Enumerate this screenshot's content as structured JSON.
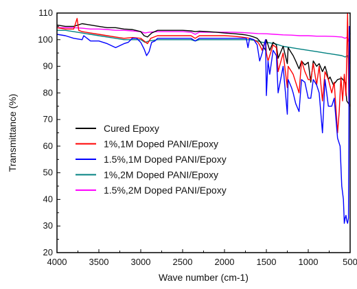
{
  "chart_data": {
    "type": "line",
    "title": "",
    "xlabel": "Wave number (cm-1)",
    "ylabel": "Transmittance (%)",
    "xlim": [
      4000,
      500
    ],
    "ylim": [
      20,
      110
    ],
    "x_ticks": [
      4000,
      3500,
      3000,
      2500,
      2000,
      1500,
      1000,
      500
    ],
    "y_ticks": [
      20,
      30,
      40,
      50,
      60,
      70,
      80,
      90,
      100,
      110
    ],
    "x_tick_labels": [
      "4000",
      "3500",
      "3000",
      "2500",
      "2000",
      "1500",
      "1000",
      "500"
    ],
    "y_tick_labels": [
      "20",
      "30",
      "40",
      "50",
      "60",
      "70",
      "80",
      "90",
      "100",
      "110"
    ],
    "grid": false,
    "legend_position": "lower-left",
    "series": [
      {
        "name": "Cured Epoxy",
        "color": "#000000",
        "x": [
          4000,
          3900,
          3800,
          3700,
          3600,
          3500,
          3400,
          3300,
          3200,
          3100,
          3000,
          2960,
          2920,
          2870,
          2800,
          2700,
          2600,
          2500,
          2400,
          2350,
          2300,
          2200,
          2100,
          2000,
          1900,
          1800,
          1750,
          1700,
          1650,
          1610,
          1580,
          1550,
          1510,
          1500,
          1460,
          1420,
          1380,
          1360,
          1300,
          1250,
          1240,
          1200,
          1180,
          1150,
          1110,
          1080,
          1040,
          1000,
          970,
          940,
          900,
          870,
          830,
          800,
          780,
          760,
          740,
          700,
          650,
          600,
          560,
          540,
          520,
          500
        ],
        "y": [
          105.5,
          105,
          105,
          106,
          105.5,
          105,
          104.5,
          104.5,
          104,
          103.8,
          103,
          101.5,
          101,
          102.5,
          103.5,
          103.5,
          103.5,
          103.5,
          103.3,
          103,
          103.2,
          103,
          102.8,
          102.5,
          102.3,
          102,
          101.8,
          101.5,
          101,
          100.5,
          99.5,
          98,
          96,
          100,
          96,
          99,
          98,
          93,
          97.5,
          91,
          97,
          95,
          94,
          92,
          89,
          92,
          90.5,
          91.5,
          84,
          92,
          90,
          91,
          88,
          90,
          88,
          85,
          86,
          83,
          85,
          85.5,
          84,
          77,
          76,
          75
        ]
      },
      {
        "name": "1%,1M Doped PANI/Epoxy",
        "color": "#ff0000",
        "x": [
          4000,
          3900,
          3800,
          3760,
          3740,
          3700,
          3600,
          3500,
          3400,
          3300,
          3200,
          3100,
          3000,
          2960,
          2920,
          2880,
          2800,
          2700,
          2600,
          2500,
          2400,
          2350,
          2300,
          2200,
          2100,
          2000,
          1900,
          1800,
          1700,
          1650,
          1600,
          1580,
          1550,
          1510,
          1500,
          1480,
          1460,
          1420,
          1380,
          1360,
          1300,
          1250,
          1240,
          1200,
          1180,
          1150,
          1110,
          1080,
          1040,
          1000,
          970,
          940,
          900,
          870,
          830,
          800,
          760,
          720,
          690,
          650,
          630,
          610,
          590,
          570,
          550,
          530,
          515,
          500
        ],
        "y": [
          104.5,
          104,
          104,
          108,
          103.5,
          103,
          102.5,
          102,
          101.5,
          101,
          100.5,
          100.8,
          100.5,
          99.5,
          98.5,
          100.5,
          101.5,
          101.5,
          101.5,
          101.5,
          101.5,
          100.5,
          101.5,
          101.5,
          101.5,
          101.5,
          101.3,
          101,
          100.5,
          100,
          99,
          98,
          96,
          100,
          95,
          92,
          94,
          98,
          97,
          88,
          95,
          82,
          90,
          88,
          87,
          84,
          80,
          92,
          88,
          85,
          85,
          91,
          83,
          90,
          77,
          88,
          85,
          80,
          84,
          65,
          73,
          86,
          77,
          87,
          79,
          110,
          76,
          75
        ]
      },
      {
        "name": "1.5%,1M Doped PANI/Epoxy",
        "color": "#0000ff",
        "x": [
          4000,
          3900,
          3800,
          3700,
          3680,
          3600,
          3500,
          3400,
          3300,
          3200,
          3150,
          3100,
          3050,
          3000,
          2960,
          2930,
          2900,
          2870,
          2830,
          2800,
          2700,
          2600,
          2500,
          2400,
          2350,
          2300,
          2200,
          2100,
          2000,
          1900,
          1800,
          1740,
          1720,
          1700,
          1650,
          1610,
          1600,
          1580,
          1550,
          1510,
          1500,
          1480,
          1460,
          1420,
          1380,
          1360,
          1300,
          1250,
          1240,
          1200,
          1180,
          1150,
          1110,
          1080,
          1040,
          1000,
          970,
          940,
          900,
          870,
          830,
          800,
          760,
          720,
          690,
          650,
          620,
          600,
          580,
          570,
          560,
          550,
          540,
          530,
          520,
          510,
          500
        ],
        "y": [
          102,
          101.5,
          100.5,
          100,
          101.5,
          99.5,
          99.5,
          98.5,
          97,
          98.5,
          99,
          100.5,
          100.5,
          99,
          96.5,
          94,
          95.5,
          99,
          99.5,
          100.5,
          100.5,
          100.5,
          100.5,
          100.5,
          99.5,
          100.5,
          100.5,
          100.5,
          100.5,
          100.5,
          100.5,
          100.5,
          97,
          100.5,
          100,
          98,
          96,
          92,
          95,
          100,
          79,
          92,
          87,
          96,
          94,
          80,
          90,
          72,
          85,
          82,
          80,
          76,
          73,
          85,
          84,
          78,
          78,
          85,
          83,
          80,
          65,
          85,
          75,
          75,
          78,
          63,
          60,
          45,
          40,
          31,
          33,
          34,
          32,
          31,
          33,
          105,
          102
        ]
      },
      {
        "name": "1%,2M Doped PANI/Epoxy",
        "color": "#008080",
        "x": [
          4000,
          3900,
          3800,
          3700,
          3600,
          3500,
          3400,
          3300,
          3200,
          3100,
          3000,
          2950,
          2900,
          2800,
          2700,
          2600,
          2500,
          2400,
          2350,
          2300,
          2200,
          2100,
          2000,
          1900,
          1800,
          1700,
          1600,
          1550,
          1500,
          1400,
          1300,
          1200,
          1100,
          1000,
          900,
          800,
          700,
          600,
          560,
          530,
          510,
          500
        ],
        "y": [
          103.5,
          103.5,
          103,
          102.5,
          102,
          101.5,
          101,
          100.5,
          100,
          100,
          100,
          99,
          99.5,
          100,
          100,
          100,
          100,
          100,
          99.5,
          100,
          100,
          100,
          100,
          100,
          100,
          100,
          99.5,
          99,
          99,
          98.5,
          97.5,
          97,
          96.5,
          96,
          95.5,
          95,
          94.5,
          94,
          93.5,
          94,
          91,
          96
        ]
      },
      {
        "name": "1.5%,2M Doped PANI/Epoxy",
        "color": "#ff00ff",
        "x": [
          4000,
          3900,
          3800,
          3700,
          3600,
          3500,
          3400,
          3300,
          3200,
          3100,
          3000,
          2950,
          2900,
          2800,
          2700,
          2600,
          2500,
          2400,
          2350,
          2300,
          2200,
          2100,
          2000,
          1900,
          1800,
          1700,
          1600,
          1500,
          1400,
          1300,
          1200,
          1100,
          1000,
          900,
          800,
          700,
          600,
          560,
          530,
          510,
          500
        ],
        "y": [
          104.5,
          104.5,
          104.5,
          104.3,
          104,
          104,
          103.8,
          103.5,
          103.5,
          103.3,
          103,
          102.5,
          102.8,
          103,
          103,
          103,
          103,
          102.8,
          102,
          102.8,
          102.8,
          102.8,
          102.8,
          102.8,
          102.7,
          102.5,
          102.3,
          102.2,
          102,
          101.8,
          101.7,
          101.5,
          101.5,
          101.3,
          101.3,
          101.2,
          101,
          100.5,
          101,
          99,
          100.5
        ]
      }
    ]
  }
}
